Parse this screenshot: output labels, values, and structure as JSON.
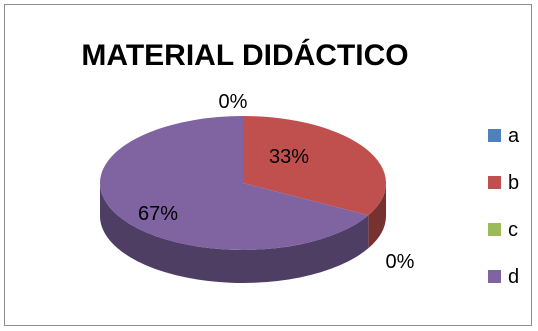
{
  "chart_data": {
    "type": "pie",
    "title": "MATERIAL DIDÁCTICO",
    "categories": [
      "a",
      "b",
      "c",
      "d"
    ],
    "values": [
      0,
      33,
      0,
      67
    ],
    "data_labels": [
      "0%",
      "33%",
      "0%",
      "67%"
    ],
    "colors": [
      "#4f81bd",
      "#c0504d",
      "#9bbb59",
      "#8064a2"
    ],
    "legend_position": "right",
    "style": "3d"
  }
}
